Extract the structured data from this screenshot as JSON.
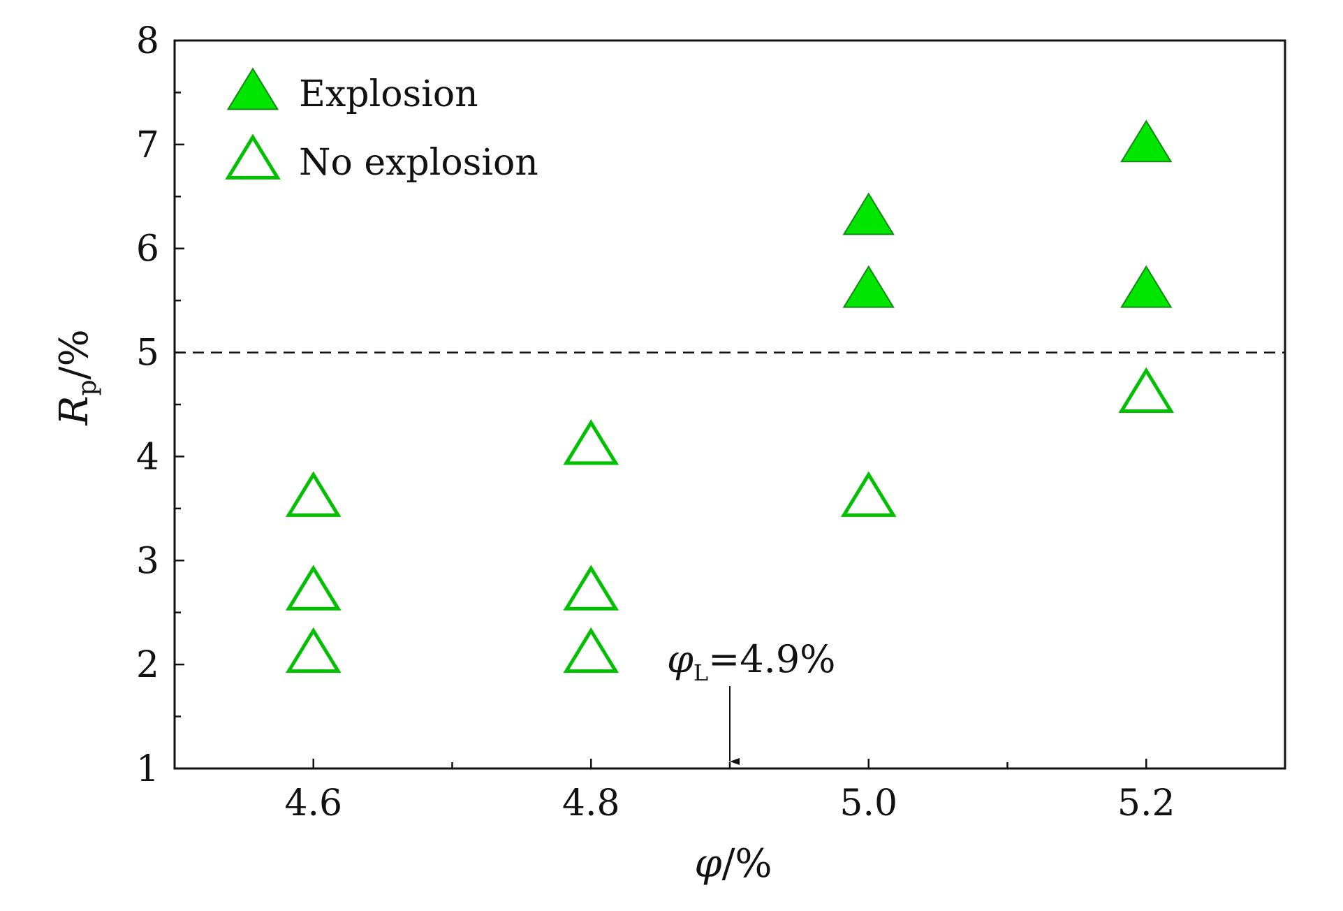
{
  "chart_data": {
    "type": "scatter",
    "xlabel": {
      "main": "φ",
      "unit": "/%"
    },
    "ylabel": {
      "main": "R",
      "subscript": "p",
      "unit": "/%"
    },
    "xlim": [
      4.5,
      5.3
    ],
    "ylim": [
      1,
      8
    ],
    "x_ticks": [
      4.6,
      4.8,
      5.0,
      5.2
    ],
    "x_tick_labels": [
      "4.6",
      "4.8",
      "5.0",
      "5.2"
    ],
    "x_minor_ticks": [
      4.7,
      4.9,
      5.1
    ],
    "y_ticks": [
      1,
      2,
      3,
      4,
      5,
      6,
      7,
      8
    ],
    "y_tick_labels": [
      "1",
      "2",
      "3",
      "4",
      "5",
      "6",
      "7",
      "8"
    ],
    "y_minor_ticks": [
      1.5,
      2.5,
      3.5,
      4.5,
      5.5,
      6.5,
      7.5
    ],
    "grid": false,
    "legend": {
      "position": "top-left"
    },
    "series": [
      {
        "name": "Explosion",
        "marker": "filled-triangle",
        "color": "#00e600",
        "edge_color": "#128a12",
        "points": [
          {
            "x": 5.0,
            "y": 6.3
          },
          {
            "x": 5.0,
            "y": 5.6
          },
          {
            "x": 5.2,
            "y": 7.0
          },
          {
            "x": 5.2,
            "y": 5.6
          }
        ]
      },
      {
        "name": "No explosion",
        "marker": "hollow-triangle",
        "color": "#ffffff",
        "edge_color": "#00c000",
        "points": [
          {
            "x": 4.6,
            "y": 3.6
          },
          {
            "x": 4.6,
            "y": 2.7
          },
          {
            "x": 4.6,
            "y": 2.1
          },
          {
            "x": 4.8,
            "y": 4.1
          },
          {
            "x": 4.8,
            "y": 2.7
          },
          {
            "x": 4.8,
            "y": 2.1
          },
          {
            "x": 5.0,
            "y": 3.6
          },
          {
            "x": 5.2,
            "y": 4.6
          }
        ]
      }
    ],
    "reference_line": {
      "y": 5,
      "style": "dashed"
    },
    "annotation": {
      "symbol": "φ",
      "subscript": "L",
      "value_text": "=4.9%",
      "x": 4.9,
      "arrow": true
    }
  }
}
